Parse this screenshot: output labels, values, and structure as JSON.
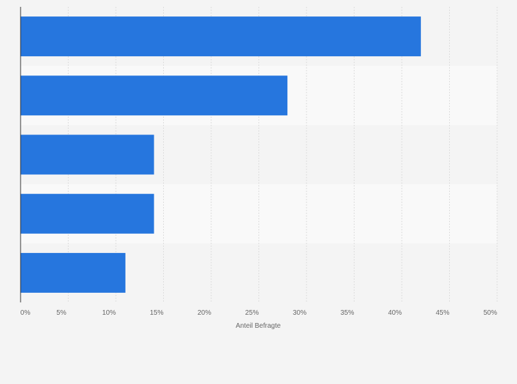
{
  "chart_data": {
    "type": "bar",
    "orientation": "horizontal",
    "categories": [
      "",
      "",
      "",
      "",
      ""
    ],
    "values": [
      42,
      28,
      14,
      14,
      11
    ],
    "unit": "%",
    "title": "",
    "xlabel": "Anteil Befragte",
    "ylabel": "",
    "xlim": [
      0,
      50
    ],
    "ticks": [
      "0%",
      "5%",
      "10%",
      "15%",
      "20%",
      "25%",
      "30%",
      "35%",
      "40%",
      "45%",
      "50%"
    ],
    "tick_values": [
      0,
      5,
      10,
      15,
      20,
      25,
      30,
      35,
      40,
      45,
      50
    ],
    "grid": true,
    "legend": "none",
    "colors": {
      "bar": "#2676de",
      "background": "#f4f4f4",
      "band_alt": "#f9f9f9",
      "grid": "#dcdcdc",
      "axis": "#333333",
      "text": "#666666"
    }
  }
}
